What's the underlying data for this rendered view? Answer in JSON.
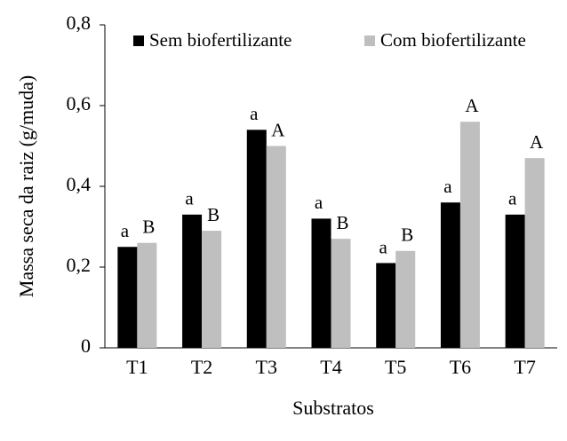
{
  "chart_data": {
    "type": "bar",
    "x_label": "Substratos",
    "y_label": "Massa seca da raiz (g/muda)",
    "categories": [
      "T1",
      "T2",
      "T3",
      "T4",
      "T5",
      "T6",
      "T7"
    ],
    "series": [
      {
        "name": "Sem biofertilizante",
        "color": "#000000",
        "values": [
          0.25,
          0.33,
          0.54,
          0.32,
          0.21,
          0.36,
          0.33
        ],
        "annotations": [
          "a",
          "a",
          "a",
          "a",
          "a",
          "a",
          "a"
        ]
      },
      {
        "name": "Com biofertilizante",
        "color": "#bfbfbf",
        "values": [
          0.26,
          0.29,
          0.5,
          0.27,
          0.24,
          0.56,
          0.47
        ],
        "annotations": [
          "B",
          "B",
          "A",
          "B",
          "B",
          "A",
          "A"
        ]
      }
    ],
    "ylim": [
      0,
      0.8
    ],
    "yticks": [
      0,
      {
        "value": 0.2,
        "label": "0,2"
      },
      {
        "value": 0.4,
        "label": "0,4"
      },
      {
        "value": 0.6,
        "label": "0,6"
      },
      {
        "value": 0.8,
        "label": "0,8"
      }
    ],
    "grid": false,
    "legend": "top"
  }
}
